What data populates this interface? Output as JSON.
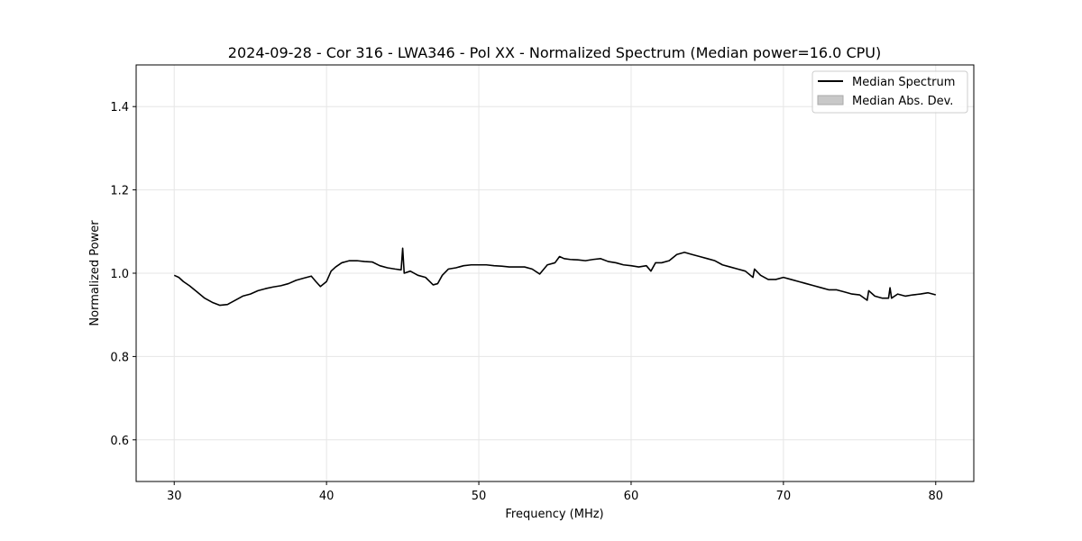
{
  "chart_data": {
    "type": "line",
    "title": "2024-09-28 - Cor 316 - LWA346 - Pol XX - Normalized Spectrum (Median power=16.0 CPU)",
    "xlabel": "Frequency (MHz)",
    "ylabel": "Normalized Power",
    "xlim": [
      27.5,
      82.5
    ],
    "ylim": [
      0.5,
      1.5
    ],
    "xticks": [
      30,
      40,
      50,
      60,
      70,
      80
    ],
    "yticks": [
      0.6,
      0.8,
      1.0,
      1.2,
      1.4
    ],
    "xtick_labels": [
      "30",
      "40",
      "50",
      "60",
      "70",
      "80"
    ],
    "ytick_labels": [
      "0.6",
      "0.8",
      "1.0",
      "1.2",
      "1.4"
    ],
    "grid": true,
    "legend_position": "top-right",
    "legend": [
      "Median Spectrum",
      "Median Abs. Dev."
    ],
    "colors": {
      "line": "#000000",
      "band": "#c8c8c8",
      "grid": "#e6e6e6"
    },
    "series": [
      {
        "name": "Median Spectrum",
        "x": [
          30.0,
          30.3,
          30.6,
          31.0,
          31.5,
          32.0,
          32.5,
          33.0,
          33.5,
          34.0,
          34.5,
          35.0,
          35.5,
          36.0,
          36.5,
          37.0,
          37.5,
          38.0,
          38.5,
          39.0,
          39.3,
          39.6,
          40.0,
          40.3,
          40.6,
          41.0,
          41.5,
          42.0,
          42.5,
          43.0,
          43.5,
          44.0,
          44.5,
          44.9,
          45.0,
          45.1,
          45.5,
          46.0,
          46.5,
          47.0,
          47.3,
          47.6,
          48.0,
          48.5,
          49.0,
          49.5,
          50.0,
          50.5,
          51.0,
          51.5,
          52.0,
          52.5,
          53.0,
          53.5,
          54.0,
          54.5,
          55.0,
          55.3,
          55.6,
          56.0,
          56.5,
          57.0,
          57.5,
          58.0,
          58.5,
          59.0,
          59.5,
          60.0,
          60.5,
          61.0,
          61.3,
          61.6,
          62.0,
          62.5,
          63.0,
          63.5,
          64.0,
          64.5,
          65.0,
          65.5,
          66.0,
          66.5,
          67.0,
          67.5,
          68.0,
          68.1,
          68.5,
          69.0,
          69.5,
          70.0,
          70.5,
          71.0,
          71.5,
          72.0,
          72.5,
          73.0,
          73.5,
          74.0,
          74.5,
          75.0,
          75.5,
          75.6,
          76.0,
          76.5,
          76.9,
          77.0,
          77.1,
          77.5,
          78.0,
          78.5,
          79.0,
          79.5,
          80.0
        ],
        "y": [
          0.995,
          0.99,
          0.98,
          0.97,
          0.955,
          0.94,
          0.93,
          0.923,
          0.925,
          0.935,
          0.945,
          0.95,
          0.958,
          0.963,
          0.967,
          0.97,
          0.975,
          0.983,
          0.988,
          0.993,
          0.98,
          0.968,
          0.98,
          1.005,
          1.015,
          1.025,
          1.03,
          1.03,
          1.028,
          1.027,
          1.018,
          1.013,
          1.01,
          1.008,
          1.06,
          1.0,
          1.005,
          0.995,
          0.99,
          0.972,
          0.975,
          0.995,
          1.01,
          1.013,
          1.018,
          1.02,
          1.02,
          1.02,
          1.018,
          1.017,
          1.015,
          1.015,
          1.015,
          1.01,
          0.998,
          1.02,
          1.025,
          1.04,
          1.035,
          1.033,
          1.032,
          1.03,
          1.033,
          1.035,
          1.028,
          1.025,
          1.02,
          1.018,
          1.015,
          1.018,
          1.005,
          1.025,
          1.025,
          1.03,
          1.045,
          1.05,
          1.045,
          1.04,
          1.035,
          1.03,
          1.02,
          1.015,
          1.01,
          1.005,
          0.99,
          1.01,
          0.995,
          0.985,
          0.985,
          0.99,
          0.985,
          0.98,
          0.975,
          0.97,
          0.965,
          0.96,
          0.96,
          0.955,
          0.95,
          0.948,
          0.935,
          0.958,
          0.945,
          0.94,
          0.94,
          0.965,
          0.94,
          0.95,
          0.945,
          0.948,
          0.95,
          0.953,
          0.948
        ]
      }
    ]
  }
}
